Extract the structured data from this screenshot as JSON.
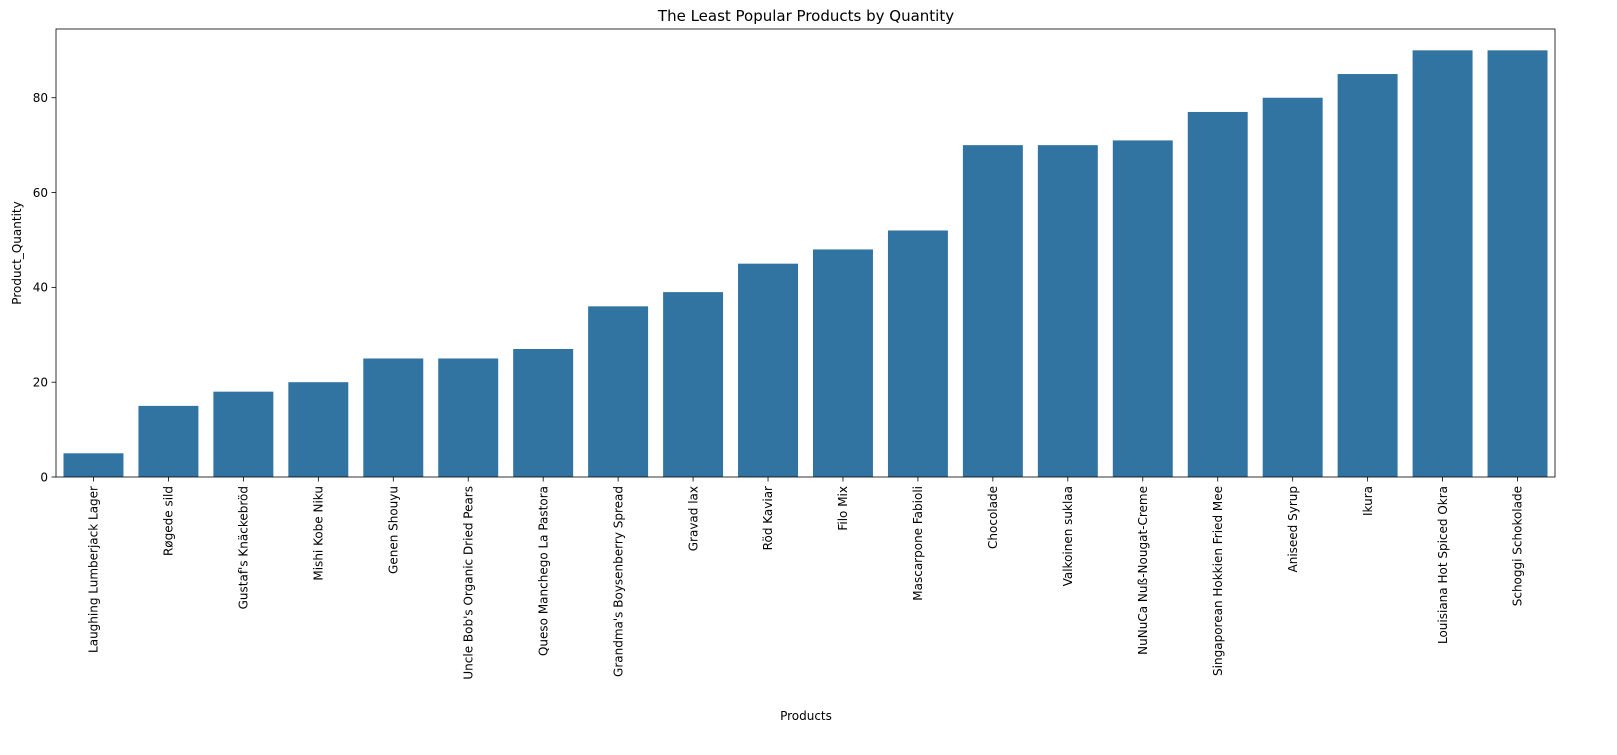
{
  "chart_data": {
    "type": "bar",
    "title": "The Least Popular Products by Quantity",
    "xlabel": "Products",
    "ylabel": "Product_Quantity",
    "categories": [
      "Laughing Lumberjack Lager",
      "Røgede sild",
      "Gustaf's Knäckebröd",
      "Mishi Kobe Niku",
      "Genen Shouyu",
      "Uncle Bob's Organic Dried Pears",
      "Queso Manchego La Pastora",
      "Grandma's Boysenberry Spread",
      "Gravad lax",
      "Röd Kaviar",
      "Filo Mix",
      "Mascarpone Fabioli",
      "Chocolade",
      "Valkoinen suklaa",
      "NuNuCa Nuß-Nougat-Creme",
      "Singaporean Hokkien Fried Mee",
      "Aniseed Syrup",
      "Ikura",
      "Louisiana Hot Spiced Okra",
      "Schoggi Schokolade"
    ],
    "values": [
      5,
      15,
      18,
      20,
      25,
      25,
      27,
      36,
      39,
      45,
      48,
      52,
      70,
      70,
      71,
      77,
      80,
      85,
      90,
      90
    ],
    "ylim": [
      0,
      94.5
    ],
    "yticks": [
      0,
      20,
      40,
      60,
      80
    ],
    "grid": false,
    "bar_color": "#3274a1"
  }
}
